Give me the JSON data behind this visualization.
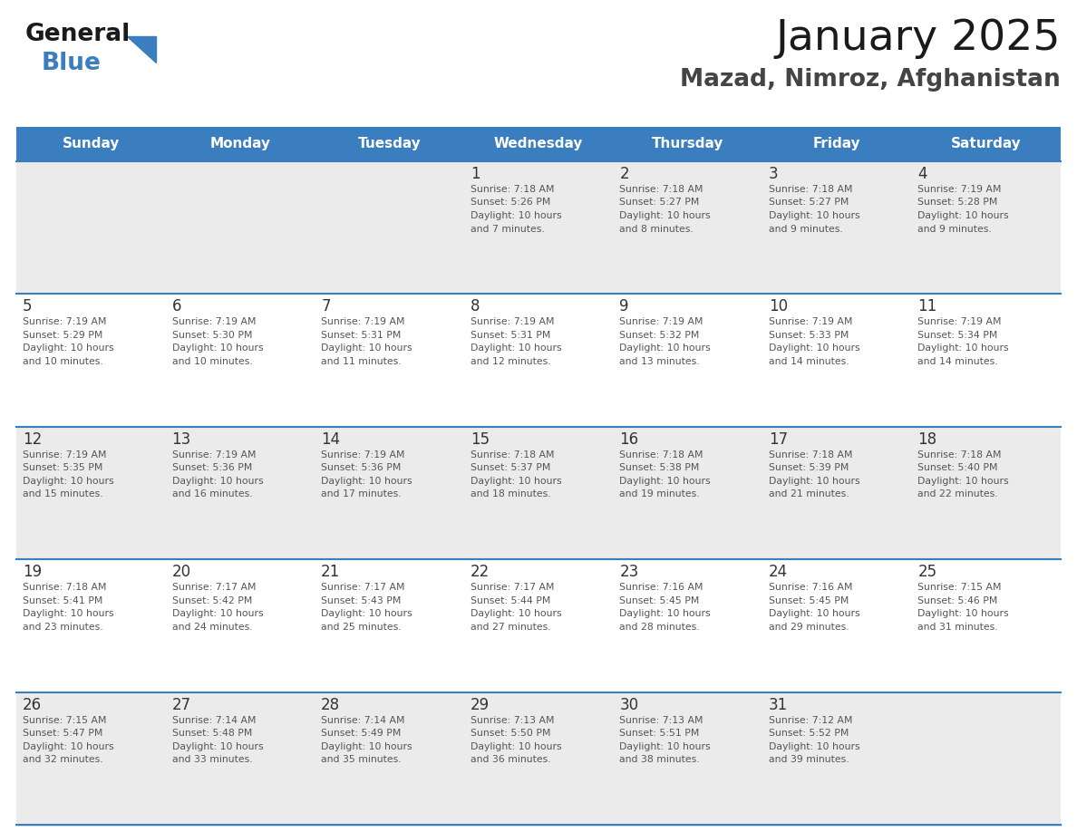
{
  "title": "January 2025",
  "subtitle": "Mazad, Nimroz, Afghanistan",
  "header_color": "#3a7ebf",
  "header_text_color": "#ffffff",
  "cell_bg_row0": "#ebebeb",
  "cell_bg_row1": "#ffffff",
  "cell_bg_row2": "#ebebeb",
  "cell_bg_row3": "#ffffff",
  "cell_bg_row4": "#ebebeb",
  "day_num_color": "#333333",
  "text_color": "#555555",
  "line_color": "#3a7ebf",
  "days_of_week": [
    "Sunday",
    "Monday",
    "Tuesday",
    "Wednesday",
    "Thursday",
    "Friday",
    "Saturday"
  ],
  "weeks": [
    [
      {
        "day": "",
        "sunrise": "",
        "sunset": "",
        "daylight": ""
      },
      {
        "day": "",
        "sunrise": "",
        "sunset": "",
        "daylight": ""
      },
      {
        "day": "",
        "sunrise": "",
        "sunset": "",
        "daylight": ""
      },
      {
        "day": "1",
        "sunrise": "7:18 AM",
        "sunset": "5:26 PM",
        "daylight": "10 hours and 7 minutes."
      },
      {
        "day": "2",
        "sunrise": "7:18 AM",
        "sunset": "5:27 PM",
        "daylight": "10 hours and 8 minutes."
      },
      {
        "day": "3",
        "sunrise": "7:18 AM",
        "sunset": "5:27 PM",
        "daylight": "10 hours and 9 minutes."
      },
      {
        "day": "4",
        "sunrise": "7:19 AM",
        "sunset": "5:28 PM",
        "daylight": "10 hours and 9 minutes."
      }
    ],
    [
      {
        "day": "5",
        "sunrise": "7:19 AM",
        "sunset": "5:29 PM",
        "daylight": "10 hours and 10 minutes."
      },
      {
        "day": "6",
        "sunrise": "7:19 AM",
        "sunset": "5:30 PM",
        "daylight": "10 hours and 10 minutes."
      },
      {
        "day": "7",
        "sunrise": "7:19 AM",
        "sunset": "5:31 PM",
        "daylight": "10 hours and 11 minutes."
      },
      {
        "day": "8",
        "sunrise": "7:19 AM",
        "sunset": "5:31 PM",
        "daylight": "10 hours and 12 minutes."
      },
      {
        "day": "9",
        "sunrise": "7:19 AM",
        "sunset": "5:32 PM",
        "daylight": "10 hours and 13 minutes."
      },
      {
        "day": "10",
        "sunrise": "7:19 AM",
        "sunset": "5:33 PM",
        "daylight": "10 hours and 14 minutes."
      },
      {
        "day": "11",
        "sunrise": "7:19 AM",
        "sunset": "5:34 PM",
        "daylight": "10 hours and 14 minutes."
      }
    ],
    [
      {
        "day": "12",
        "sunrise": "7:19 AM",
        "sunset": "5:35 PM",
        "daylight": "10 hours and 15 minutes."
      },
      {
        "day": "13",
        "sunrise": "7:19 AM",
        "sunset": "5:36 PM",
        "daylight": "10 hours and 16 minutes."
      },
      {
        "day": "14",
        "sunrise": "7:19 AM",
        "sunset": "5:36 PM",
        "daylight": "10 hours and 17 minutes."
      },
      {
        "day": "15",
        "sunrise": "7:18 AM",
        "sunset": "5:37 PM",
        "daylight": "10 hours and 18 minutes."
      },
      {
        "day": "16",
        "sunrise": "7:18 AM",
        "sunset": "5:38 PM",
        "daylight": "10 hours and 19 minutes."
      },
      {
        "day": "17",
        "sunrise": "7:18 AM",
        "sunset": "5:39 PM",
        "daylight": "10 hours and 21 minutes."
      },
      {
        "day": "18",
        "sunrise": "7:18 AM",
        "sunset": "5:40 PM",
        "daylight": "10 hours and 22 minutes."
      }
    ],
    [
      {
        "day": "19",
        "sunrise": "7:18 AM",
        "sunset": "5:41 PM",
        "daylight": "10 hours and 23 minutes."
      },
      {
        "day": "20",
        "sunrise": "7:17 AM",
        "sunset": "5:42 PM",
        "daylight": "10 hours and 24 minutes."
      },
      {
        "day": "21",
        "sunrise": "7:17 AM",
        "sunset": "5:43 PM",
        "daylight": "10 hours and 25 minutes."
      },
      {
        "day": "22",
        "sunrise": "7:17 AM",
        "sunset": "5:44 PM",
        "daylight": "10 hours and 27 minutes."
      },
      {
        "day": "23",
        "sunrise": "7:16 AM",
        "sunset": "5:45 PM",
        "daylight": "10 hours and 28 minutes."
      },
      {
        "day": "24",
        "sunrise": "7:16 AM",
        "sunset": "5:45 PM",
        "daylight": "10 hours and 29 minutes."
      },
      {
        "day": "25",
        "sunrise": "7:15 AM",
        "sunset": "5:46 PM",
        "daylight": "10 hours and 31 minutes."
      }
    ],
    [
      {
        "day": "26",
        "sunrise": "7:15 AM",
        "sunset": "5:47 PM",
        "daylight": "10 hours and 32 minutes."
      },
      {
        "day": "27",
        "sunrise": "7:14 AM",
        "sunset": "5:48 PM",
        "daylight": "10 hours and 33 minutes."
      },
      {
        "day": "28",
        "sunrise": "7:14 AM",
        "sunset": "5:49 PM",
        "daylight": "10 hours and 35 minutes."
      },
      {
        "day": "29",
        "sunrise": "7:13 AM",
        "sunset": "5:50 PM",
        "daylight": "10 hours and 36 minutes."
      },
      {
        "day": "30",
        "sunrise": "7:13 AM",
        "sunset": "5:51 PM",
        "daylight": "10 hours and 38 minutes."
      },
      {
        "day": "31",
        "sunrise": "7:12 AM",
        "sunset": "5:52 PM",
        "daylight": "10 hours and 39 minutes."
      },
      {
        "day": "",
        "sunrise": "",
        "sunset": "",
        "daylight": ""
      }
    ]
  ],
  "logo_color_general": "#1a1a1a",
  "logo_color_blue": "#3a7ebf",
  "logo_triangle_color": "#3a7ebf",
  "title_fontsize": 34,
  "subtitle_fontsize": 19,
  "header_fontsize": 11,
  "day_num_fontsize": 12,
  "cell_text_fontsize": 7.8
}
